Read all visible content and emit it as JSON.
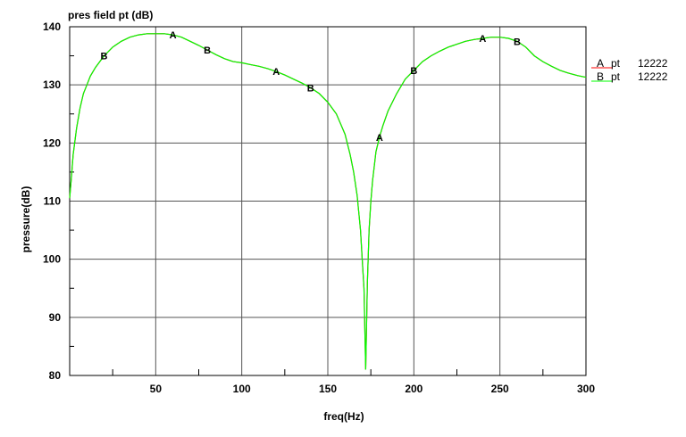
{
  "chart_data": {
    "type": "line",
    "title": "pres field pt (dB)",
    "xlabel": "freq(Hz)",
    "ylabel": "pressure(dB)",
    "xlim": [
      0,
      300
    ],
    "ylim": [
      80,
      140
    ],
    "xticks": [
      50,
      100,
      150,
      200,
      250,
      300
    ],
    "yticks": [
      80,
      90,
      100,
      110,
      120,
      130,
      140
    ],
    "grid": true,
    "legend_position": "right",
    "colors": {
      "A": "#ff0000",
      "B": "#00ff00"
    },
    "x": [
      0,
      1,
      2,
      4,
      6,
      8,
      10,
      12,
      15,
      20,
      25,
      30,
      35,
      40,
      45,
      50,
      55,
      60,
      65,
      70,
      75,
      80,
      85,
      90,
      95,
      100,
      105,
      110,
      115,
      120,
      125,
      130,
      135,
      140,
      145,
      150,
      155,
      160,
      163,
      165,
      167,
      168,
      169,
      170,
      171,
      172,
      173,
      174,
      175,
      176,
      177,
      178,
      180,
      182,
      185,
      190,
      195,
      200,
      205,
      210,
      215,
      220,
      225,
      230,
      235,
      240,
      245,
      250,
      255,
      260,
      265,
      270,
      275,
      280,
      285,
      290,
      295,
      300
    ],
    "series": [
      {
        "name": "pt",
        "marker": "A",
        "id": "12222",
        "values": [
          110.5,
          114.0,
          118.0,
          122.5,
          126.0,
          128.5,
          130.0,
          131.5,
          133.0,
          135.0,
          136.5,
          137.5,
          138.2,
          138.6,
          138.8,
          138.8,
          138.8,
          138.6,
          138.2,
          137.5,
          136.8,
          136.0,
          135.2,
          134.5,
          134.0,
          133.8,
          133.5,
          133.2,
          132.8,
          132.3,
          131.7,
          131.0,
          130.3,
          129.5,
          128.5,
          127.0,
          125.0,
          121.5,
          118.0,
          115.0,
          111.0,
          108.0,
          105.0,
          100.0,
          95.0,
          81.0,
          96.0,
          105.0,
          110.0,
          113.5,
          116.0,
          118.5,
          121.0,
          123.0,
          125.5,
          128.5,
          131.0,
          132.5,
          134.0,
          135.0,
          135.8,
          136.5,
          137.0,
          137.5,
          137.8,
          138.0,
          138.2,
          138.2,
          138.0,
          137.5,
          136.5,
          135.0,
          134.0,
          133.2,
          132.5,
          132.0,
          131.6,
          131.3
        ]
      },
      {
        "name": "pt",
        "marker": "B",
        "id": "12222",
        "values": [
          110.5,
          114.0,
          118.0,
          122.5,
          126.0,
          128.5,
          130.0,
          131.5,
          133.0,
          135.0,
          136.5,
          137.5,
          138.2,
          138.6,
          138.8,
          138.8,
          138.8,
          138.6,
          138.2,
          137.5,
          136.8,
          136.0,
          135.2,
          134.5,
          134.0,
          133.8,
          133.5,
          133.2,
          132.8,
          132.3,
          131.7,
          131.0,
          130.3,
          129.5,
          128.5,
          127.0,
          125.0,
          121.5,
          118.0,
          115.0,
          111.0,
          108.0,
          105.0,
          100.0,
          95.0,
          81.0,
          96.0,
          105.0,
          110.0,
          113.5,
          116.0,
          118.5,
          121.0,
          123.0,
          125.5,
          128.5,
          131.0,
          132.5,
          134.0,
          135.0,
          135.8,
          136.5,
          137.0,
          137.5,
          137.8,
          138.0,
          138.2,
          138.2,
          138.0,
          137.5,
          136.5,
          135.0,
          134.0,
          133.2,
          132.5,
          132.0,
          131.6,
          131.3
        ]
      }
    ],
    "markers": [
      {
        "letter": "A",
        "x": 60,
        "y": 138.6
      },
      {
        "letter": "A",
        "x": 120,
        "y": 132.3
      },
      {
        "letter": "A",
        "x": 180,
        "y": 121.0
      },
      {
        "letter": "A",
        "x": 240,
        "y": 138.0
      },
      {
        "letter": "B",
        "x": 20,
        "y": 135.0
      },
      {
        "letter": "B",
        "x": 80,
        "y": 136.0
      },
      {
        "letter": "B",
        "x": 140,
        "y": 129.5
      },
      {
        "letter": "B",
        "x": 200,
        "y": 132.5
      },
      {
        "letter": "B",
        "x": 260,
        "y": 137.5
      }
    ]
  }
}
